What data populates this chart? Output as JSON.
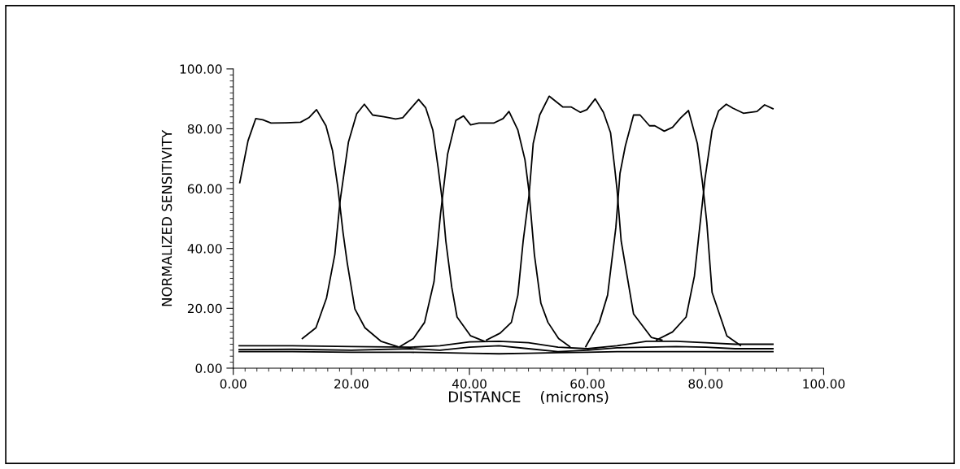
{
  "chart_data": {
    "type": "line",
    "xlabel": "DISTANCE    (microns)",
    "ylabel": "NORMALIZED SENSITIVITY",
    "xlim": [
      0,
      100
    ],
    "ylim": [
      0,
      100
    ],
    "xticks": [
      {
        "value": 0,
        "label": "0.00"
      },
      {
        "value": 20,
        "label": "20.00"
      },
      {
        "value": 40,
        "label": "40.00"
      },
      {
        "value": 60,
        "label": "60.00"
      },
      {
        "value": 80,
        "label": "80.00"
      },
      {
        "value": 100,
        "label": "100.00"
      }
    ],
    "yticks": [
      {
        "value": 0,
        "label": "0.00"
      },
      {
        "value": 20,
        "label": "20.00"
      },
      {
        "value": 40,
        "label": "40.00"
      },
      {
        "value": 60,
        "label": "60.00"
      },
      {
        "value": 80,
        "label": "80.00"
      },
      {
        "value": 100,
        "label": "100.00"
      }
    ],
    "marker": "none",
    "line_style": "solid",
    "series": [
      {
        "color": "#000000",
        "x": [
          1.1,
          2.5,
          3.8,
          5.0,
          6.4,
          8.9,
          11.4,
          12.8,
          14.1,
          15.7,
          16.8,
          17.7,
          18.6,
          19.3,
          20.6,
          22.3,
          25,
          27.8
        ],
        "values": [
          62,
          76,
          83.4,
          83,
          81.9,
          82,
          82.2,
          83.7,
          86.4,
          81,
          72.8,
          60.6,
          45.2,
          35.2,
          19.8,
          13.5,
          9,
          7.2
        ]
      },
      {
        "color": "#000000",
        "x": [
          11.7,
          14,
          15.8,
          17.2,
          18.1,
          19.5,
          20.9,
          22.2,
          23.6,
          25.5,
          27.5,
          28.7,
          30.1,
          31.4,
          32.6,
          33.8,
          34.7,
          35.4,
          36,
          37,
          37.9,
          40.2,
          42.5
        ],
        "values": [
          9.9,
          13.5,
          23.5,
          38,
          56,
          75.5,
          85,
          88.2,
          84.6,
          84,
          83.3,
          83.7,
          86.9,
          89.8,
          87,
          79.6,
          67,
          56,
          42.5,
          27.1,
          17.1,
          10.8,
          9.0
        ]
      },
      {
        "color": "#000000",
        "x": [
          28.2,
          30.5,
          32.4,
          34,
          35.1,
          36.3,
          37.7,
          39,
          40.2,
          41.6,
          44.1,
          45.7,
          46.7,
          48.2,
          49.4,
          50.1,
          51,
          52.1,
          53.3,
          55.1,
          57
        ],
        "values": [
          7.2,
          9.9,
          15.3,
          28.9,
          51.5,
          71.5,
          82.8,
          84.3,
          81.3,
          81.9,
          81.9,
          83.4,
          85.8,
          79.6,
          69.7,
          58.8,
          38,
          21.7,
          15.3,
          9.9,
          7.2
        ]
      },
      {
        "color": "#000000",
        "x": [
          42.9,
          45.2,
          47.1,
          48.2,
          49.1,
          50.1,
          50.8,
          51.9,
          53.5,
          55.8,
          57.2,
          58.8,
          59.9,
          61.3,
          62.7,
          63.9,
          64.6,
          65,
          65.7,
          67.8,
          70.8,
          72.6
        ],
        "values": [
          9.4,
          11.7,
          15.3,
          24.4,
          42.5,
          57.9,
          75.1,
          84.6,
          90.9,
          87.3,
          87.3,
          85.5,
          86.4,
          90,
          85.5,
          78.7,
          67,
          59.7,
          42.5,
          18.1,
          10.3,
          9.4
        ]
      },
      {
        "color": "#000000",
        "x": [
          59.7,
          62,
          63.4,
          64.8,
          65.5,
          66.4,
          67.8,
          68.9,
          70.5,
          71.4,
          73,
          74.4,
          75.8,
          77.1,
          78.6,
          79.5,
          80.2,
          81.1,
          83.6,
          85.9
        ],
        "values": [
          7.2,
          15.3,
          24.4,
          47,
          65.1,
          74.2,
          84.6,
          84.6,
          81,
          81,
          79.2,
          80.5,
          83.7,
          86.1,
          75.1,
          61.5,
          48.8,
          25.3,
          10.8,
          7.6
        ]
      },
      {
        "color": "#000000",
        "x": [
          71.7,
          74.4,
          76.7,
          78.1,
          79,
          79.9,
          81.1,
          82.2,
          83.5,
          84.6,
          86.4,
          88.7,
          90,
          91.4
        ],
        "values": [
          9.4,
          12.1,
          17.1,
          30.7,
          47,
          63.3,
          79.6,
          86,
          88.2,
          86.9,
          85.2,
          85.8,
          88,
          86.7
        ]
      },
      {
        "color": "#000000",
        "x": [
          1,
          10,
          20,
          30,
          35,
          40,
          45,
          50,
          55,
          60,
          65,
          70,
          75,
          80,
          85,
          91.4
        ],
        "values": [
          7.5,
          7.5,
          7.2,
          7,
          7.5,
          8.8,
          9,
          8.5,
          7,
          6.5,
          7.5,
          9,
          9,
          8.5,
          8,
          8
        ]
      },
      {
        "color": "#000000",
        "x": [
          1,
          10,
          20,
          30,
          35,
          40,
          45,
          50,
          55,
          60,
          65,
          70,
          75,
          80,
          85,
          91.4
        ],
        "values": [
          6.2,
          6.3,
          6,
          6.5,
          6,
          7,
          7.5,
          6.5,
          5.5,
          6,
          6.8,
          7,
          7.2,
          7,
          6.5,
          6.5
        ]
      },
      {
        "color": "#000000",
        "x": [
          1,
          10,
          20,
          30,
          35,
          40,
          45,
          50,
          55,
          60,
          65,
          70,
          75,
          80,
          85,
          91.4
        ],
        "values": [
          5.5,
          5.5,
          5.3,
          5.3,
          5.2,
          5,
          4.8,
          5,
          5.2,
          5.3,
          5.5,
          5.5,
          5.5,
          5.5,
          5.5,
          5.5
        ]
      }
    ]
  }
}
